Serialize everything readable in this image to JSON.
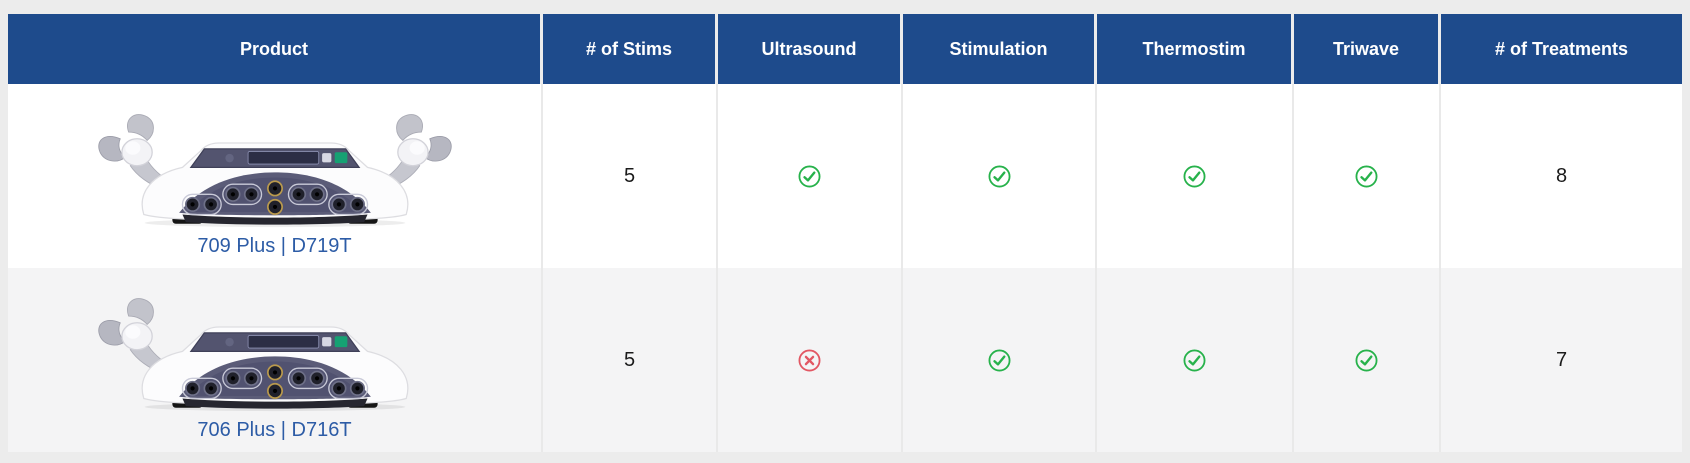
{
  "page": {
    "background": "#ececec"
  },
  "table": {
    "columns": [
      {
        "key": "product",
        "label": "Product"
      },
      {
        "key": "stims",
        "label": "# of Stims"
      },
      {
        "key": "ultrasound",
        "label": "Ultrasound"
      },
      {
        "key": "stimulation",
        "label": "Stimulation"
      },
      {
        "key": "thermostim",
        "label": "Thermostim"
      },
      {
        "key": "triwave",
        "label": "Triwave"
      },
      {
        "key": "treatments",
        "label": "# of Treatments"
      }
    ],
    "rows": [
      {
        "product_name": "709 Plus | D719T",
        "image": "therapy-device-two-applicators",
        "num_stims": "5",
        "ultrasound": true,
        "stimulation": true,
        "thermostim": true,
        "triwave": true,
        "num_treatments": "8"
      },
      {
        "product_name": "706 Plus | D716T",
        "image": "therapy-device-one-applicator",
        "num_stims": "5",
        "ultrasound": false,
        "stimulation": true,
        "thermostim": true,
        "triwave": true,
        "num_treatments": "7"
      }
    ],
    "icons": {
      "yes": "check-circle-icon",
      "no": "x-circle-icon"
    },
    "colors": {
      "header_bg": "#1e4b8c",
      "header_text": "#ffffff",
      "yes_green": "#27b24b",
      "no_red": "#e25763",
      "product_link": "#2d5ca6",
      "row_bg": "#ffffff",
      "row_alt_bg": "#f4f4f5",
      "page_bg": "#ececec",
      "border": "#e9e9e9"
    }
  }
}
